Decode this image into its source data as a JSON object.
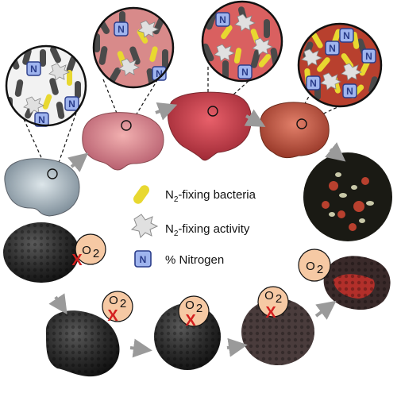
{
  "legend": {
    "bacteria": {
      "main": "N",
      "sub": "2",
      "rest": "-fixing bacteria"
    },
    "activity": {
      "main": "N",
      "sub": "2",
      "rest": "-fixing activity"
    },
    "nitrogen": {
      "label": "% Nitrogen",
      "icon_letter": "N"
    }
  },
  "o2": {
    "main": "O",
    "sub": "2"
  },
  "cross_mark": "X",
  "colors": {
    "bacteria": "#e8d830",
    "rod_dark": "#4a4a4a",
    "activity_star": "#e0e0e0",
    "nitrogen_fill": "#9fb4ee",
    "nitrogen_stroke": "#2a3c8a",
    "o2_bubble": "#f6c9a4",
    "cross": "#d42020",
    "arrow": "#9a9a9a"
  }
}
